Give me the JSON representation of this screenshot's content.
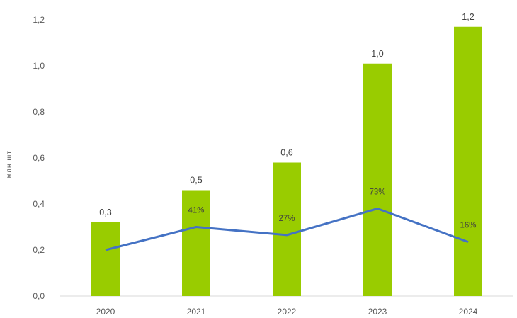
{
  "chart_data": {
    "type": "bar",
    "categories": [
      "2020",
      "2021",
      "2022",
      "2023",
      "2024"
    ],
    "series": [
      {
        "type": "bar",
        "values": [
          0.32,
          0.46,
          0.58,
          1.01,
          1.17
        ],
        "data_labels": [
          "0,3",
          "0,5",
          "0,6",
          "1,0",
          "1,2"
        ],
        "color": "#99cc00"
      },
      {
        "type": "line",
        "values": [
          0.2,
          0.3,
          0.265,
          0.38,
          0.235
        ],
        "data_labels": [
          "",
          "41%",
          "27%",
          "73%",
          "16%"
        ],
        "color": "#4472c4"
      }
    ],
    "y_ticks": [
      "0,0",
      "0,2",
      "0,4",
      "0,6",
      "0,8",
      "1,0",
      "1,2"
    ],
    "ylabel": "млн шт",
    "ylim": [
      0,
      1.2
    ],
    "grid": false,
    "legend": "none"
  }
}
